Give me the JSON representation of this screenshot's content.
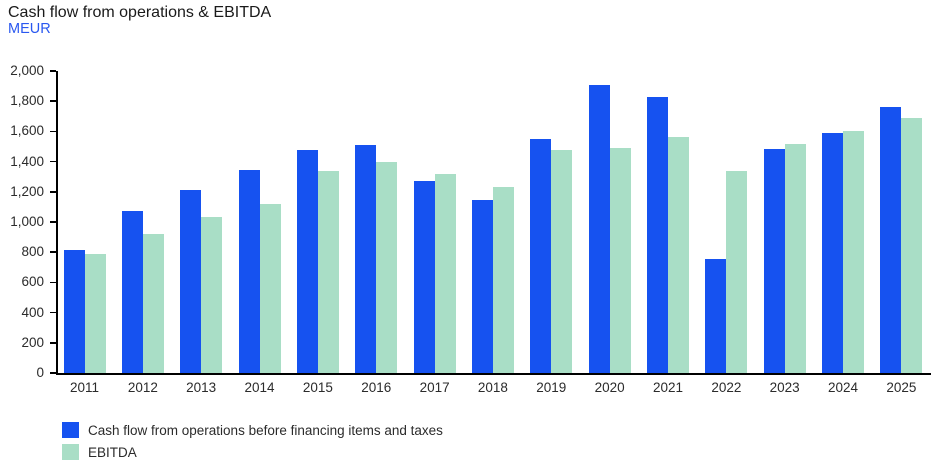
{
  "header": {
    "title": "Cash flow from operations & EBITDA",
    "subtitle": "MEUR"
  },
  "colors": {
    "cashflow_blue": "#1652f0",
    "ebitda_green": "#a9dec6",
    "subtitle_blue": "#2a58f0",
    "axis_black": "#000000",
    "label_gray": "#2b2b2b",
    "title_dark": "#1a1a1a"
  },
  "chart_data": {
    "type": "bar",
    "title": "Cash flow from operations & EBITDA",
    "unit_label": "MEUR",
    "categories": [
      "2011",
      "2012",
      "2013",
      "2014",
      "2015",
      "2016",
      "2017",
      "2018",
      "2019",
      "2020",
      "2021",
      "2022",
      "2023",
      "2024",
      "2025"
    ],
    "series": [
      {
        "name": "Cash flow from operations before financing items and taxes",
        "color": "#1652f0",
        "values": [
          815,
          1070,
          1210,
          1345,
          1475,
          1510,
          1270,
          1145,
          1550,
          1905,
          1830,
          755,
          1485,
          1590,
          1760
        ]
      },
      {
        "name": "EBITDA",
        "color": "#a9dec6",
        "values": [
          790,
          920,
          1035,
          1120,
          1340,
          1395,
          1320,
          1230,
          1475,
          1490,
          1560,
          1335,
          1515,
          1600,
          1690
        ]
      }
    ],
    "xlabel": "",
    "ylabel": "MEUR",
    "ylim": [
      0,
      2000
    ],
    "ytick_step": 200,
    "ytick_labels": [
      "0",
      "200",
      "400",
      "600",
      "800",
      "1,000",
      "1,200",
      "1,400",
      "1,600",
      "1,800",
      "2,000"
    ],
    "grid": false,
    "legend_position": "bottom-left"
  },
  "legend": {
    "items": [
      {
        "label": "Cash flow from operations before financing items and taxes"
      },
      {
        "label": "EBITDA"
      }
    ]
  }
}
